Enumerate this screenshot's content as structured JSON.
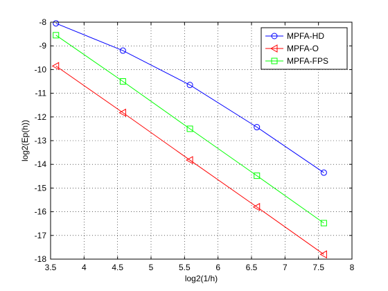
{
  "chart_data": {
    "type": "line",
    "title": "",
    "xlabel": "log2(1/h)",
    "ylabel": "log2(Ep(h))",
    "xlim": [
      3.5,
      8
    ],
    "ylim": [
      -18,
      -8
    ],
    "xticks": [
      3.5,
      4,
      4.5,
      5,
      5.5,
      6,
      6.5,
      7,
      7.5,
      8
    ],
    "xtick_labels": [
      "3.5",
      "4",
      "4.5",
      "5",
      "5.5",
      "6",
      "6.5",
      "7",
      "7.5",
      "8"
    ],
    "yticks": [
      -18,
      -17,
      -16,
      -15,
      -14,
      -13,
      -12,
      -11,
      -10,
      -9,
      -8
    ],
    "ytick_labels": [
      "-18",
      "-17",
      "-16",
      "-15",
      "-14",
      "-13",
      "-12",
      "-11",
      "-10",
      "-9",
      "-8"
    ],
    "grid": true,
    "legend_position": "top-right",
    "x": [
      3.58,
      4.58,
      5.58,
      6.58,
      7.58
    ],
    "series": [
      {
        "name": "MPFA-HD",
        "color": "#0000ff",
        "marker": "circle",
        "values": [
          -8.05,
          -9.2,
          -10.65,
          -12.43,
          -14.35
        ]
      },
      {
        "name": "MPFA-O",
        "color": "#ff0000",
        "marker": "triangle-left",
        "values": [
          -9.85,
          -11.82,
          -13.82,
          -15.8,
          -17.8
        ]
      },
      {
        "name": "MPFA-FPS",
        "color": "#00ff00",
        "marker": "square",
        "values": [
          -8.55,
          -10.5,
          -12.5,
          -14.48,
          -16.48
        ]
      }
    ]
  }
}
